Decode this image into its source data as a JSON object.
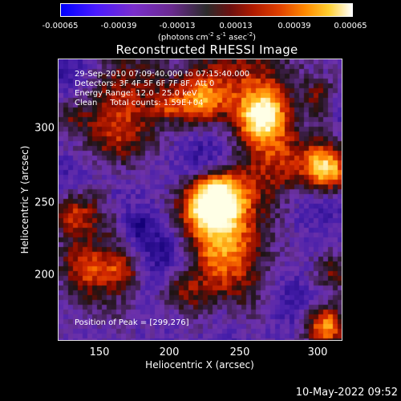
{
  "colorbar": {
    "ticks": [
      "-0.00065",
      "-0.00039",
      "-0.00013",
      "0.00013",
      "0.00039",
      "0.00065"
    ],
    "units_prefix": "(photons cm",
    "units_e1": "-2",
    "units_mid1": " s",
    "units_e2": "-1",
    "units_mid2": " asec",
    "units_e3": "-2",
    "units_suffix": ")"
  },
  "title": "Reconstructed RHESSI Image",
  "info": {
    "line1": "29-Sep-2010 07:09:40.000 to 07:15:40.000",
    "line2": "Detectors: 3F 4F 5F 6F 7F 8F, Att 0",
    "line3": "Energy Range: 12.0 - 25.0 keV",
    "line4": "Clean     Total counts: 1.59E+04"
  },
  "peak": "Position of Peak = [299,276]",
  "x_axis": {
    "label": "Heliocentric X (arcsec)",
    "ticks": [
      "150",
      "200",
      "250",
      "300"
    ]
  },
  "y_axis": {
    "label": "Heliocentric Y (arcsec)",
    "ticks": [
      "300",
      "250",
      "200"
    ]
  },
  "timestamp": "10-May-2022 09:52",
  "colors": {
    "low": "#0000ff",
    "mid_low": "#7a2ecc",
    "neutral": "#2b2b2b",
    "mid_high": "#e04000",
    "high": "#ffffff"
  }
}
